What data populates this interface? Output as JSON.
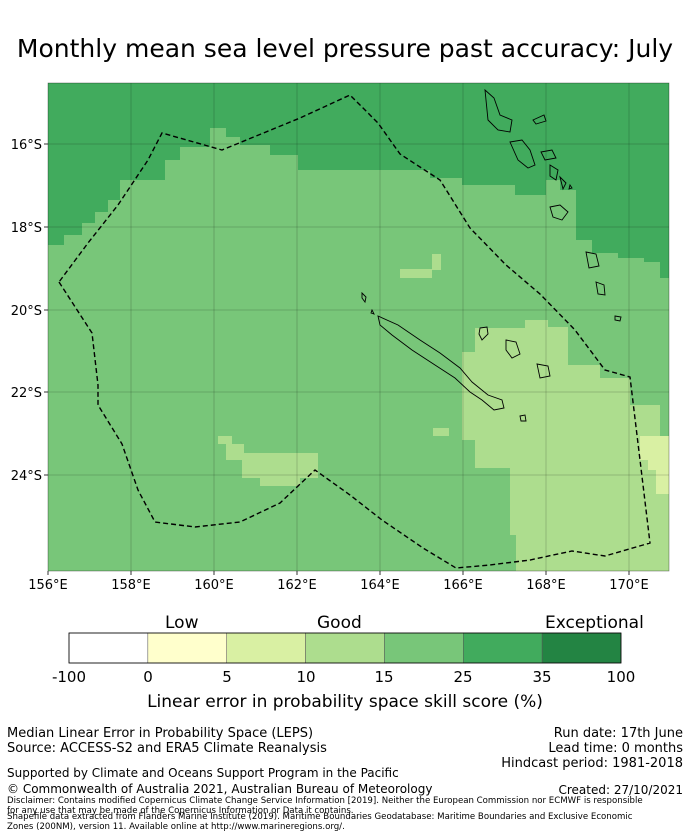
{
  "title": "Monthly mean sea level pressure past accuracy: July",
  "map": {
    "lon_range": [
      156.0,
      171.0
    ],
    "lat_range": [
      -26.3,
      -14.6
    ],
    "lon_ticks": [
      "156°E",
      "158°E",
      "160°E",
      "162°E",
      "164°E",
      "166°E",
      "168°E",
      "170°E"
    ],
    "lat_ticks": [
      "16°S",
      "18°S",
      "20°S",
      "22°S",
      "24°S"
    ],
    "gridlines": true,
    "region_outline": "dashed",
    "landmasses": [
      "New Caledonia",
      "Vanuatu"
    ]
  },
  "legend": {
    "band_labels": [
      "Low",
      "Good",
      "Exceptional"
    ],
    "ticks": [
      "-100",
      "0",
      "5",
      "10",
      "15",
      "25",
      "35",
      "100"
    ],
    "colors": [
      "#ffffff",
      "#ffffcc",
      "#d9f0a3",
      "#addd8e",
      "#78c679",
      "#41ab5d",
      "#238443"
    ],
    "label": "Linear error in probability space skill score (%)"
  },
  "info": {
    "metric": "Median Linear Error in Probability Space (LEPS)",
    "source": "Source: ACCESS-S2 and ERA5 Climate Reanalysis",
    "support": "Supported by Climate and Oceans Support Program in the Pacific",
    "copyright": "© Commonwealth of Australia 2021, Australian Bureau of Meteorology",
    "run_date": "Run date: 17th June",
    "lead_time": "Lead time: 0 months",
    "hindcast": "Hindcast period: 1981-2018",
    "created": "Created: 27/10/2021",
    "disclaimer": "Disclaimer: Contains modified Copernicus Climate Change Service Information [2019]. Neither the European Commission nor ECMWF is responsible for any use that may be made of the Copernicus Information or Data it contains.",
    "shapefile": "Shapefile data extracted from Flanders Marine Institute (2019). Maritime Boundaries Geodatabase: Maritime Boundaries and Exclusive Economic Zones (200NM), version 11. Available online at http://www.marineregions.org/."
  }
}
